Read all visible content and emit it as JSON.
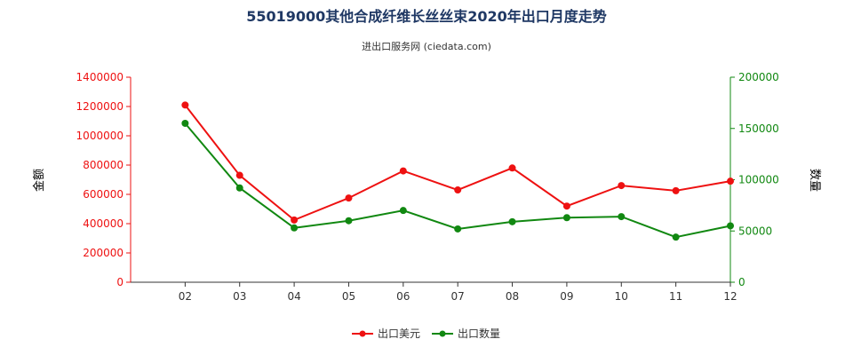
{
  "title": "55019000其他合成纤维长丝丝束2020年出口月度走势",
  "subtitle": "进出口服务网 (ciedata.com)",
  "colors": {
    "series1": "#ee1111",
    "series2": "#118811",
    "title": "#1f3864"
  },
  "chart_data": {
    "type": "line",
    "categories": [
      "02",
      "03",
      "04",
      "05",
      "06",
      "07",
      "08",
      "09",
      "10",
      "11",
      "12"
    ],
    "left_axis": {
      "label": "金额",
      "ylim": [
        0,
        1400000
      ],
      "ticks": [
        "0",
        "200000",
        "400000",
        "600000",
        "800000",
        "1000000",
        "1200000",
        "1400000"
      ]
    },
    "right_axis": {
      "label": "数量",
      "ylim": [
        0,
        200000
      ],
      "ticks": [
        "0",
        "50000",
        "100000",
        "150000",
        "200000"
      ]
    },
    "series": [
      {
        "name": "出口美元",
        "axis": "left",
        "color": "#ee1111",
        "values": [
          1210000,
          730000,
          425000,
          575000,
          760000,
          630000,
          780000,
          520000,
          660000,
          625000,
          690000
        ]
      },
      {
        "name": "出口数量",
        "axis": "right",
        "color": "#118811",
        "values": [
          155000,
          92000,
          53000,
          60000,
          70000,
          52000,
          59000,
          63000,
          64000,
          44000,
          55000
        ]
      }
    ],
    "grid": false,
    "legend": "bottom-center"
  }
}
